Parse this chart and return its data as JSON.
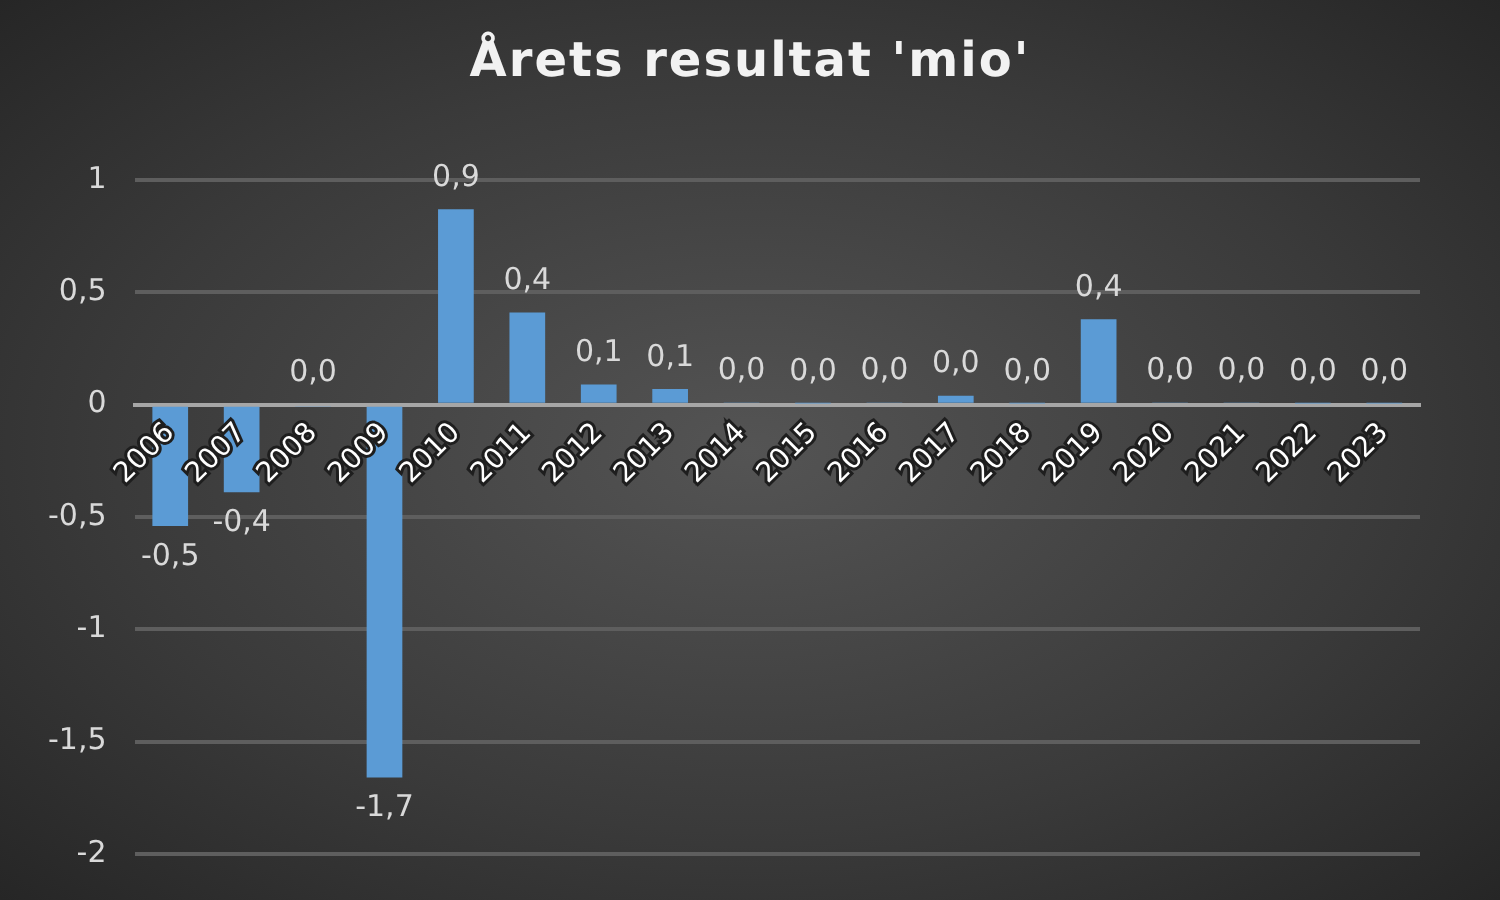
{
  "chart_data": {
    "type": "bar",
    "title": "Årets resultat 'mio'",
    "categories": [
      "2006",
      "2007",
      "2008",
      "2009",
      "2010",
      "2011",
      "2012",
      "2013",
      "2014",
      "2015",
      "2016",
      "2017",
      "2018",
      "2019",
      "2020",
      "2021",
      "2022",
      "2023"
    ],
    "values": [
      -0.54,
      -0.39,
      -0.01,
      -1.66,
      0.87,
      0.41,
      0.09,
      0.07,
      0.01,
      0.005,
      0.01,
      0.04,
      0.005,
      0.38,
      0.01,
      0.01,
      0.005,
      0.005
    ],
    "value_labels": [
      "-0,5",
      "-0,4",
      "0,0",
      "-1,7",
      "0,9",
      "0,4",
      "0,1",
      "0,1",
      "0,0",
      "0,0",
      "0,0",
      "0,0",
      "0,0",
      "0,4",
      "0,0",
      "0,0",
      "0,0",
      "0,0"
    ],
    "color": "#5b9bd5",
    "ylim": [
      -2,
      1
    ],
    "yticks": [
      {
        "value": -2,
        "label": "-2"
      },
      {
        "value": -1.5,
        "label": "-1,5"
      },
      {
        "value": -1,
        "label": "-1"
      },
      {
        "value": -0.5,
        "label": "-0,5"
      },
      {
        "value": 0,
        "label": "0"
      },
      {
        "value": 0.5,
        "label": "0,5"
      },
      {
        "value": 1,
        "label": "1"
      }
    ],
    "grid": "y",
    "legend": false
  }
}
